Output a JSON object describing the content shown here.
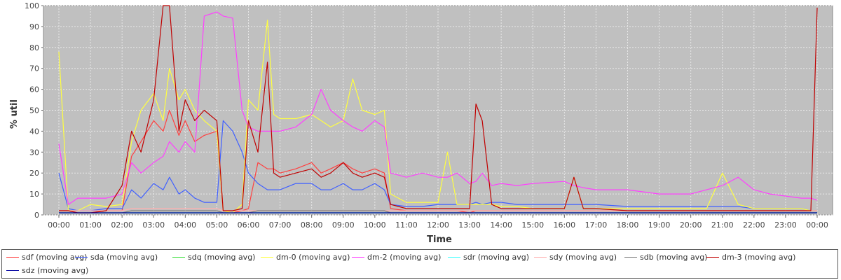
{
  "chart_data": {
    "type": "line",
    "title": "",
    "xlabel": "Time",
    "ylabel": "% util",
    "ylim": [
      0,
      100
    ],
    "yticks": [
      "0",
      "10",
      "20",
      "30",
      "40",
      "50",
      "60",
      "70",
      "80",
      "90",
      "100"
    ],
    "xticks": [
      "00:00",
      "01:00",
      "02:00",
      "03:00",
      "04:00",
      "05:00",
      "06:00",
      "07:00",
      "08:00",
      "09:00",
      "10:00",
      "11:00",
      "12:00",
      "13:00",
      "14:00",
      "15:00",
      "16:00",
      "17:00",
      "18:00",
      "19:00",
      "20:00",
      "21:00",
      "22:00",
      "23:00",
      "00:00"
    ],
    "grid": true,
    "legend_position": "bottom",
    "background": "#c0c0c0",
    "x_hours": [
      0,
      0.3,
      0.6,
      1,
      1.5,
      2,
      2.3,
      2.6,
      3,
      3.3,
      3.5,
      3.8,
      4,
      4.3,
      4.6,
      5,
      5.2,
      5.5,
      5.8,
      6,
      6.3,
      6.6,
      6.8,
      7,
      7.5,
      8,
      8.3,
      8.6,
      9,
      9.3,
      9.6,
      10,
      10.3,
      10.5,
      11,
      11.5,
      12,
      12.3,
      12.6,
      13,
      13.2,
      13.4,
      13.7,
      14,
      14.5,
      15,
      16,
      16.3,
      16.6,
      17,
      18,
      19,
      20,
      20.5,
      21,
      21.5,
      22,
      22.5,
      23,
      23.5,
      23.8,
      24
    ],
    "series": [
      {
        "name": "sdf (moving avg)",
        "color": "#ff4040",
        "values": [
          2,
          2,
          1,
          1,
          2,
          2,
          28,
          35,
          45,
          40,
          50,
          38,
          45,
          35,
          38,
          40,
          2,
          1,
          2,
          3,
          25,
          22,
          22,
          20,
          22,
          25,
          20,
          22,
          25,
          22,
          20,
          22,
          20,
          3,
          2,
          2,
          2,
          2,
          2,
          1,
          2,
          2,
          2,
          2,
          2,
          2,
          2,
          2,
          2,
          2,
          2,
          2,
          2,
          2,
          2,
          2,
          2,
          2,
          2,
          2,
          2,
          2
        ]
      },
      {
        "name": "sda (moving avg)",
        "color": "#4060ff",
        "values": [
          20,
          3,
          2,
          2,
          3,
          3,
          12,
          8,
          15,
          12,
          18,
          10,
          12,
          8,
          6,
          6,
          45,
          40,
          30,
          20,
          15,
          12,
          12,
          12,
          15,
          15,
          12,
          12,
          15,
          12,
          12,
          15,
          12,
          5,
          4,
          4,
          5,
          5,
          5,
          5,
          6,
          5,
          6,
          6,
          5,
          5,
          5,
          5,
          5,
          5,
          4,
          4,
          4,
          4,
          4,
          4,
          3,
          3,
          3,
          3,
          2,
          2
        ]
      },
      {
        "name": "sdq (moving avg)",
        "color": "#40e040",
        "values": [
          1,
          1,
          1,
          1,
          1,
          1,
          1,
          1,
          1,
          1,
          1,
          1,
          1,
          1,
          1,
          1,
          1,
          1,
          1,
          1,
          1,
          1,
          1,
          1,
          1,
          1,
          1,
          1,
          1,
          1,
          1,
          1,
          1,
          1,
          1,
          1,
          1,
          1,
          1,
          1,
          1,
          1,
          1,
          1,
          1,
          1,
          1,
          1,
          1,
          1,
          1,
          1,
          1,
          1,
          1,
          1,
          1,
          1,
          1,
          1,
          1,
          1
        ]
      },
      {
        "name": "dm-0 (moving avg)",
        "color": "#ffff40",
        "values": [
          78,
          2,
          2,
          5,
          4,
          5,
          35,
          50,
          58,
          45,
          70,
          55,
          60,
          50,
          45,
          40,
          2,
          1,
          5,
          55,
          50,
          93,
          48,
          46,
          46,
          48,
          45,
          42,
          45,
          65,
          50,
          48,
          50,
          10,
          6,
          6,
          6,
          30,
          5,
          5,
          5,
          5,
          5,
          4,
          4,
          3,
          3,
          18,
          3,
          3,
          3,
          3,
          3,
          3,
          20,
          5,
          3,
          3,
          3,
          3,
          2,
          2
        ]
      },
      {
        "name": "dm-2 (moving avg)",
        "color": "#ff40ff",
        "values": [
          34,
          5,
          8,
          8,
          8,
          10,
          25,
          20,
          25,
          28,
          35,
          30,
          35,
          30,
          95,
          97,
          95,
          94,
          50,
          42,
          40,
          40,
          40,
          40,
          42,
          48,
          60,
          50,
          45,
          42,
          40,
          45,
          42,
          20,
          18,
          20,
          18,
          18,
          20,
          15,
          16,
          20,
          14,
          15,
          14,
          15,
          16,
          14,
          13,
          12,
          12,
          10,
          10,
          12,
          14,
          18,
          12,
          10,
          9,
          8,
          8,
          7
        ]
      },
      {
        "name": "sdr (moving avg)",
        "color": "#40ffff",
        "values": [
          1,
          1,
          1,
          1,
          1,
          1,
          1,
          1,
          1,
          1,
          1,
          1,
          1,
          1,
          1,
          1,
          1,
          1,
          1,
          1,
          1,
          1,
          1,
          1,
          1,
          1,
          1,
          1,
          1,
          1,
          1,
          1,
          1,
          1,
          1,
          1,
          1,
          1,
          1,
          1,
          1,
          1,
          1,
          1,
          1,
          1,
          1,
          1,
          1,
          1,
          1,
          1,
          1,
          1,
          1,
          1,
          1,
          1,
          1,
          1,
          1,
          1
        ]
      },
      {
        "name": "sdy (moving avg)",
        "color": "#ffafaf",
        "values": [
          2,
          2,
          2,
          2,
          2,
          2,
          3,
          3,
          3,
          3,
          3,
          3,
          3,
          3,
          3,
          3,
          2,
          2,
          2,
          2,
          2,
          2,
          2,
          2,
          2,
          2,
          2,
          2,
          2,
          2,
          2,
          2,
          2,
          2,
          2,
          2,
          2,
          2,
          2,
          2,
          2,
          2,
          2,
          2,
          2,
          2,
          2,
          2,
          2,
          2,
          2,
          2,
          2,
          2,
          2,
          2,
          2,
          2,
          2,
          2,
          2,
          2
        ]
      },
      {
        "name": "sdb (moving avg)",
        "color": "#808080",
        "values": [
          1,
          1,
          1,
          1,
          1,
          1,
          2,
          2,
          2,
          2,
          2,
          2,
          2,
          2,
          2,
          2,
          1,
          1,
          1,
          1,
          2,
          2,
          2,
          2,
          2,
          2,
          2,
          2,
          2,
          2,
          2,
          2,
          2,
          1,
          1,
          1,
          1,
          1,
          1,
          1,
          1,
          1,
          1,
          1,
          1,
          1,
          1,
          1,
          1,
          1,
          1,
          1,
          1,
          1,
          1,
          1,
          1,
          1,
          1,
          1,
          1,
          1
        ]
      },
      {
        "name": "dm-3 (moving avg)",
        "color": "#c00000",
        "values": [
          2,
          2,
          1,
          1,
          2,
          14,
          40,
          30,
          55,
          100,
          100,
          40,
          55,
          45,
          50,
          45,
          2,
          2,
          3,
          45,
          30,
          73,
          20,
          18,
          20,
          22,
          18,
          20,
          25,
          20,
          18,
          20,
          18,
          5,
          3,
          3,
          3,
          3,
          3,
          3,
          53,
          45,
          5,
          3,
          3,
          3,
          3,
          18,
          3,
          3,
          2,
          2,
          2,
          2,
          2,
          2,
          2,
          2,
          2,
          2,
          2,
          99
        ]
      },
      {
        "name": "sdz (moving avg)",
        "color": "#0000a0",
        "values": [
          1,
          1,
          1,
          1,
          1,
          1,
          1,
          1,
          1,
          1,
          1,
          1,
          1,
          1,
          1,
          1,
          1,
          1,
          1,
          1,
          1,
          1,
          1,
          1,
          1,
          1,
          1,
          1,
          1,
          1,
          1,
          1,
          1,
          1,
          1,
          1,
          1,
          1,
          1,
          1,
          1,
          1,
          1,
          1,
          1,
          1,
          1,
          1,
          1,
          1,
          1,
          1,
          1,
          1,
          1,
          1,
          1,
          1,
          1,
          1,
          1,
          1
        ]
      }
    ]
  }
}
